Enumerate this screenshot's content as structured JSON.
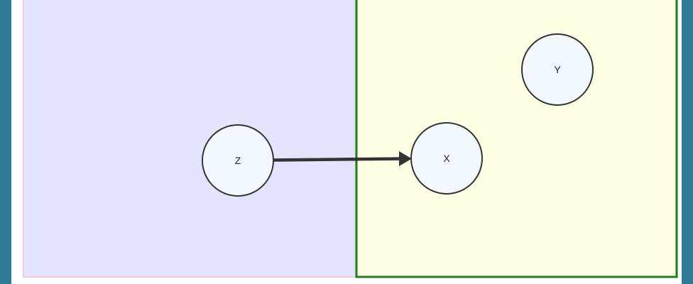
{
  "diagram": {
    "nodes": [
      {
        "id": "z",
        "label": "Z"
      },
      {
        "id": "x",
        "label": "X"
      },
      {
        "id": "y",
        "label": "Y"
      }
    ],
    "edges": [
      {
        "from": "Z",
        "to": "X"
      }
    ],
    "groups": [
      {
        "id": "left",
        "contains": [
          "Z"
        ],
        "fill": "#e4e4ff",
        "stroke": "#f5c6d6"
      },
      {
        "id": "right",
        "contains": [
          "X",
          "Y"
        ],
        "fill": "#ffffe6",
        "stroke": "#1e7d1e"
      }
    ],
    "colors": {
      "frame": "#2e7a92",
      "node_fill": "#f3f8ff",
      "node_stroke": "#333333",
      "edge": "#333333"
    }
  }
}
